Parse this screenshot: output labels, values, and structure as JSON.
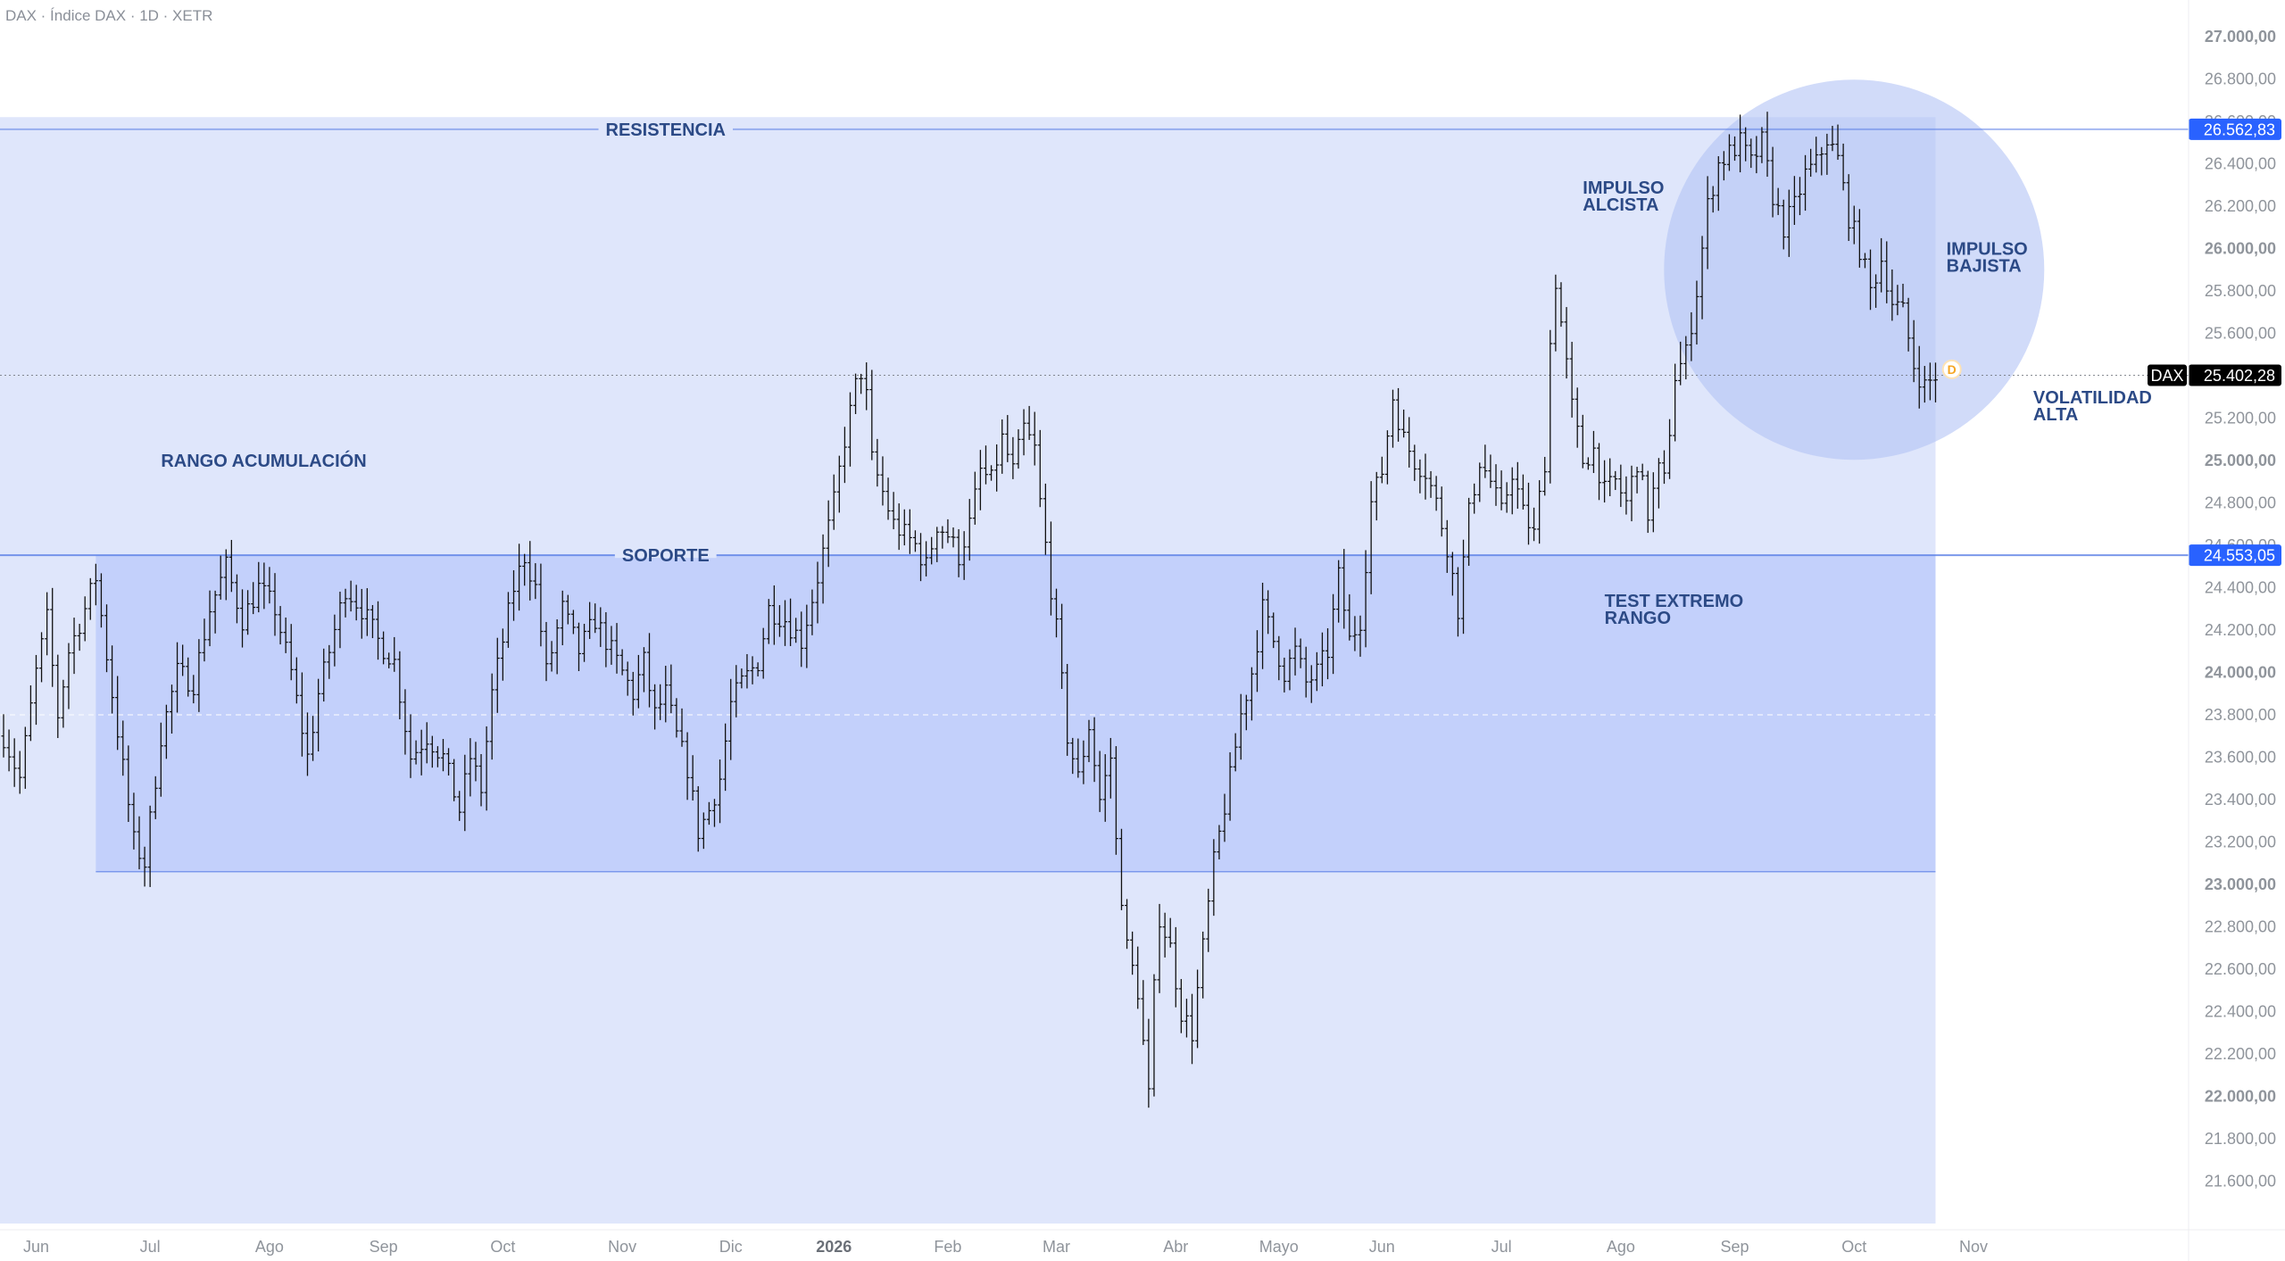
{
  "header": {
    "title": "DAX · Índice DAX · 1D · XETR"
  },
  "colors": {
    "zone_fill": "#dfe6fb",
    "range_fill": "#c3d0fb",
    "line": "#5b7fe6",
    "circle": "#b3c3f5",
    "annotation_text": "#2c4a86",
    "price_badge_bg": "#2962ff",
    "price_text": "#8f949b",
    "bar": "#111111",
    "last_price_badge": "#000000",
    "marker": "#f5a623"
  },
  "chart_data": {
    "type": "bar",
    "title": "",
    "ylim": [
      21400,
      27000
    ],
    "yticks": [
      {
        "value": 27000,
        "label": "27.000,00",
        "bold": true
      },
      {
        "value": 26800,
        "label": "26.800,00"
      },
      {
        "value": 26600,
        "label": "26.600,00"
      },
      {
        "value": 26400,
        "label": "26.400,00"
      },
      {
        "value": 26200,
        "label": "26.200,00"
      },
      {
        "value": 26000,
        "label": "26.000,00",
        "bold": true
      },
      {
        "value": 25800,
        "label": "25.800,00"
      },
      {
        "value": 25600,
        "label": "25.600,00"
      },
      {
        "value": 25200,
        "label": "25.200,00"
      },
      {
        "value": 25000,
        "label": "25.000,00",
        "bold": true
      },
      {
        "value": 24800,
        "label": "24.800,00"
      },
      {
        "value": 24600,
        "label": "24.600,00"
      },
      {
        "value": 24400,
        "label": "24.400,00"
      },
      {
        "value": 24200,
        "label": "24.200,00"
      },
      {
        "value": 24000,
        "label": "24.000,00",
        "bold": true
      },
      {
        "value": 23800,
        "label": "23.800,00"
      },
      {
        "value": 23600,
        "label": "23.600,00"
      },
      {
        "value": 23400,
        "label": "23.400,00"
      },
      {
        "value": 23200,
        "label": "23.200,00"
      },
      {
        "value": 23000,
        "label": "23.000,00",
        "bold": true
      },
      {
        "value": 22800,
        "label": "22.800,00"
      },
      {
        "value": 22600,
        "label": "22.600,00"
      },
      {
        "value": 22400,
        "label": "22.400,00"
      },
      {
        "value": 22200,
        "label": "22.200,00"
      },
      {
        "value": 22000,
        "label": "22.000,00",
        "bold": true
      },
      {
        "value": 21800,
        "label": "21.800,00"
      },
      {
        "value": 21600,
        "label": "21.600,00"
      }
    ],
    "xticks": [
      {
        "label": "Jun",
        "bar": 6
      },
      {
        "label": "Jul",
        "bar": 27
      },
      {
        "label": "Ago",
        "bar": 49
      },
      {
        "label": "Sep",
        "bar": 70
      },
      {
        "label": "Oct",
        "bar": 92
      },
      {
        "label": "Nov",
        "bar": 114
      },
      {
        "label": "Dic",
        "bar": 134
      },
      {
        "label": "2026",
        "bar": 153,
        "bold": true
      },
      {
        "label": "Feb",
        "bar": 174
      },
      {
        "label": "Mar",
        "bar": 194
      },
      {
        "label": "Abr",
        "bar": 216
      },
      {
        "label": "Mayo",
        "bar": 235
      },
      {
        "label": "Jun",
        "bar": 254
      },
      {
        "label": "Jul",
        "bar": 276
      },
      {
        "label": "Ago",
        "bar": 298
      },
      {
        "label": "Sep",
        "bar": 319
      },
      {
        "label": "Oct",
        "bar": 341
      },
      {
        "label": "Nov",
        "bar": 363
      }
    ],
    "keypoints": [
      [
        0,
        23700
      ],
      [
        3,
        23500
      ],
      [
        6,
        24000
      ],
      [
        8,
        24250
      ],
      [
        10,
        23800
      ],
      [
        12,
        24100
      ],
      [
        15,
        24300
      ],
      [
        17,
        24450
      ],
      [
        20,
        23900
      ],
      [
        24,
        23200
      ],
      [
        26,
        23100
      ],
      [
        29,
        23700
      ],
      [
        32,
        24000
      ],
      [
        35,
        23950
      ],
      [
        38,
        24300
      ],
      [
        41,
        24500
      ],
      [
        44,
        24250
      ],
      [
        47,
        24400
      ],
      [
        50,
        24300
      ],
      [
        53,
        24000
      ],
      [
        56,
        23600
      ],
      [
        58,
        23900
      ],
      [
        61,
        24200
      ],
      [
        63,
        24400
      ],
      [
        66,
        24300
      ],
      [
        69,
        24150
      ],
      [
        72,
        24050
      ],
      [
        75,
        23600
      ],
      [
        78,
        23700
      ],
      [
        81,
        23600
      ],
      [
        84,
        23350
      ],
      [
        86,
        23600
      ],
      [
        88,
        23450
      ],
      [
        90,
        23900
      ],
      [
        92,
        24150
      ],
      [
        94,
        24400
      ],
      [
        96,
        24550
      ],
      [
        98,
        24400
      ],
      [
        100,
        24000
      ],
      [
        103,
        24300
      ],
      [
        106,
        24100
      ],
      [
        109,
        24250
      ],
      [
        112,
        24100
      ],
      [
        114,
        24000
      ],
      [
        116,
        23900
      ],
      [
        118,
        24050
      ],
      [
        120,
        23800
      ],
      [
        122,
        23900
      ],
      [
        124,
        23700
      ],
      [
        126,
        23550
      ],
      [
        128,
        23250
      ],
      [
        130,
        23350
      ],
      [
        132,
        23500
      ],
      [
        134,
        23850
      ],
      [
        136,
        23950
      ],
      [
        139,
        24050
      ],
      [
        141,
        24300
      ],
      [
        144,
        24250
      ],
      [
        147,
        24150
      ],
      [
        150,
        24450
      ],
      [
        153,
        24800
      ],
      [
        155,
        25100
      ],
      [
        157,
        25350
      ],
      [
        158,
        25420
      ],
      [
        159,
        25300
      ],
      [
        160,
        25000
      ],
      [
        162,
        24850
      ],
      [
        164,
        24700
      ],
      [
        166,
        24650
      ],
      [
        168,
        24600
      ],
      [
        170,
        24500
      ],
      [
        172,
        24700
      ],
      [
        174,
        24650
      ],
      [
        176,
        24550
      ],
      [
        178,
        24700
      ],
      [
        180,
        24950
      ],
      [
        182,
        24900
      ],
      [
        184,
        25100
      ],
      [
        186,
        24950
      ],
      [
        188,
        25150
      ],
      [
        190,
        25050
      ],
      [
        191,
        24800
      ],
      [
        192,
        24600
      ],
      [
        194,
        24200
      ],
      [
        196,
        23700
      ],
      [
        198,
        23500
      ],
      [
        200,
        23750
      ],
      [
        202,
        23400
      ],
      [
        204,
        23600
      ],
      [
        205,
        23200
      ],
      [
        207,
        22700
      ],
      [
        209,
        22500
      ],
      [
        211,
        22000
      ],
      [
        212,
        22500
      ],
      [
        213,
        22850
      ],
      [
        215,
        22700
      ],
      [
        217,
        22400
      ],
      [
        219,
        22300
      ],
      [
        221,
        22700
      ],
      [
        223,
        23100
      ],
      [
        226,
        23500
      ],
      [
        228,
        23800
      ],
      [
        230,
        24000
      ],
      [
        232,
        24300
      ],
      [
        234,
        24150
      ],
      [
        236,
        24000
      ],
      [
        238,
        24100
      ],
      [
        240,
        23950
      ],
      [
        242,
        24000
      ],
      [
        244,
        24100
      ],
      [
        246,
        24450
      ],
      [
        248,
        24150
      ],
      [
        250,
        24250
      ],
      [
        252,
        24800
      ],
      [
        254,
        24950
      ],
      [
        256,
        25300
      ],
      [
        258,
        25100
      ],
      [
        260,
        25000
      ],
      [
        262,
        24950
      ],
      [
        264,
        24800
      ],
      [
        266,
        24600
      ],
      [
        268,
        24300
      ],
      [
        270,
        24750
      ],
      [
        272,
        25000
      ],
      [
        274,
        24900
      ],
      [
        276,
        24750
      ],
      [
        278,
        24950
      ],
      [
        280,
        24750
      ],
      [
        282,
        24650
      ],
      [
        284,
        25000
      ],
      [
        285,
        25550
      ],
      [
        286,
        25850
      ],
      [
        287,
        25650
      ],
      [
        289,
        25250
      ],
      [
        291,
        25000
      ],
      [
        293,
        25050
      ],
      [
        295,
        24850
      ],
      [
        297,
        24900
      ],
      [
        299,
        24800
      ],
      [
        301,
        25000
      ],
      [
        303,
        24750
      ],
      [
        305,
        24950
      ],
      [
        306,
        24900
      ],
      [
        308,
        25400
      ],
      [
        310,
        25500
      ],
      [
        312,
        25800
      ],
      [
        314,
        26200
      ],
      [
        316,
        26400
      ],
      [
        318,
        26450
      ],
      [
        320,
        26500
      ],
      [
        322,
        26400
      ],
      [
        324,
        26500
      ],
      [
        326,
        26250
      ],
      [
        328,
        26100
      ],
      [
        330,
        26200
      ],
      [
        332,
        26350
      ],
      [
        334,
        26400
      ],
      [
        336,
        26520
      ],
      [
        338,
        26420
      ],
      [
        340,
        26150
      ],
      [
        342,
        26000
      ],
      [
        344,
        25800
      ],
      [
        346,
        25950
      ],
      [
        348,
        25750
      ],
      [
        350,
        25700
      ],
      [
        352,
        25450
      ],
      [
        354,
        25350
      ],
      [
        356,
        25400
      ]
    ],
    "last_bar": 356,
    "last_price": 25402.28,
    "last_price_label": "25.402,28",
    "symbol_label": "DAX",
    "resistance": {
      "value": 26562.83,
      "label": "26.562,83",
      "text": "RESISTENCIA"
    },
    "support": {
      "value": 24553.05,
      "label": "24.553,05",
      "text": "SOPORTE"
    },
    "range_box": {
      "bar_start": 17,
      "bar_end": 356,
      "top": 24553.05,
      "bottom": 23060
    },
    "zone_box": {
      "bar_end": 356,
      "top": 26620,
      "bottom": 21400
    },
    "dashed_mid": 23800,
    "circle": {
      "bar": 341,
      "value": 25900
    },
    "annotations": [
      {
        "lines": [
          "RANGO ACUMULACIÓN"
        ],
        "bar": 29,
        "value": 24970
      },
      {
        "lines": [
          "IMPULSO",
          "ALCISTA"
        ],
        "bar": 291,
        "value": 26260
      },
      {
        "lines": [
          "IMPULSO",
          "BAJISTA"
        ],
        "bar": 358,
        "value": 25970
      },
      {
        "lines": [
          "VOLATILIDAD",
          "ALTA"
        ],
        "bar": 374,
        "value": 25270
      },
      {
        "lines": [
          "TEST EXTREMO",
          "RANGO"
        ],
        "bar": 295,
        "value": 24310
      }
    ],
    "marker": {
      "text": "D",
      "bar": 359,
      "value": 25430
    },
    "grid": false,
    "legend": "none"
  }
}
